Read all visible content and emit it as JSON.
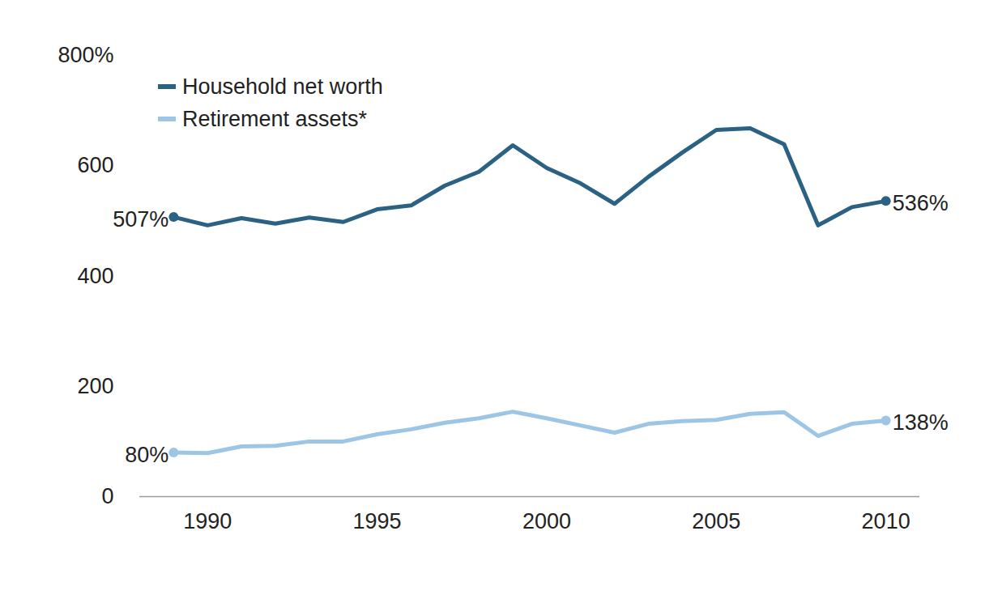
{
  "chart_data": {
    "type": "line",
    "x": [
      1989,
      1990,
      1991,
      1992,
      1993,
      1994,
      1995,
      1996,
      1997,
      1998,
      1999,
      2000,
      2001,
      2002,
      2003,
      2004,
      2005,
      2006,
      2007,
      2008,
      2009,
      2010
    ],
    "series": [
      {
        "name": "Household net worth",
        "color": "#2b6283",
        "values": [
          507,
          492,
          505,
          495,
          506,
          498,
          521,
          528,
          564,
          589,
          637,
          596,
          568,
          531,
          580,
          624,
          665,
          668,
          639,
          492,
          525,
          536
        ],
        "value_labels": [
          "507%",
          null,
          null,
          null,
          null,
          null,
          null,
          null,
          null,
          null,
          null,
          null,
          null,
          null,
          null,
          null,
          null,
          null,
          null,
          null,
          null,
          "536%"
        ]
      },
      {
        "name": "Retirement assets*",
        "color": "#9dc6e6",
        "values": [
          80,
          79,
          91,
          92,
          100,
          100,
          113,
          122,
          134,
          142,
          154,
          142,
          129,
          116,
          132,
          137,
          139,
          150,
          153,
          110,
          132,
          138
        ],
        "value_labels": [
          "80%",
          null,
          null,
          null,
          null,
          null,
          null,
          null,
          null,
          null,
          null,
          null,
          null,
          null,
          null,
          null,
          null,
          null,
          null,
          null,
          null,
          "138%"
        ]
      }
    ],
    "xlim": [
      1988,
      2011
    ],
    "xticks": [
      1990,
      1995,
      2000,
      2005,
      2010
    ],
    "ylim": [
      0,
      800
    ],
    "yticks": [
      0,
      200,
      400,
      600,
      {
        "value": 800,
        "label": "800%"
      }
    ],
    "grid": false,
    "legend": "top-left"
  }
}
